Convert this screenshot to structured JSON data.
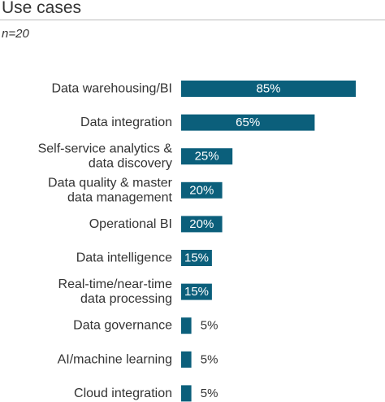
{
  "title": "Use cases",
  "subtitle": "n=20",
  "colors": {
    "bar": "#0b5f7b",
    "text": "#333333",
    "rule": "#bdbdbd"
  },
  "chart_data": {
    "type": "bar",
    "orientation": "horizontal",
    "title": "Use cases",
    "subtitle": "n=20",
    "categories": [
      "Data warehousing/BI",
      "Data integration",
      "Self-service analytics & data discovery",
      "Data quality & master data management",
      "Operational BI",
      "Data intelligence",
      "Real-time/near-time data processing",
      "Data governance",
      "AI/machine learning",
      "Cloud integration"
    ],
    "category_lines": [
      [
        "Data warehousing/BI"
      ],
      [
        "Data integration"
      ],
      [
        "Self-service analytics &",
        "data discovery"
      ],
      [
        "Data quality & master",
        "data management"
      ],
      [
        "Operational BI"
      ],
      [
        "Data intelligence"
      ],
      [
        "Real-time/near-time",
        "data processing"
      ],
      [
        "Data governance"
      ],
      [
        "AI/machine learning"
      ],
      [
        "Cloud integration"
      ]
    ],
    "values": [
      85,
      65,
      25,
      20,
      20,
      15,
      15,
      5,
      5,
      5
    ],
    "labels": [
      "85%",
      "65%",
      "25%",
      "20%",
      "20%",
      "15%",
      "15%",
      "5%",
      "5%",
      "5%"
    ],
    "xlim": [
      0,
      85
    ],
    "grid": false,
    "legend": "none"
  }
}
